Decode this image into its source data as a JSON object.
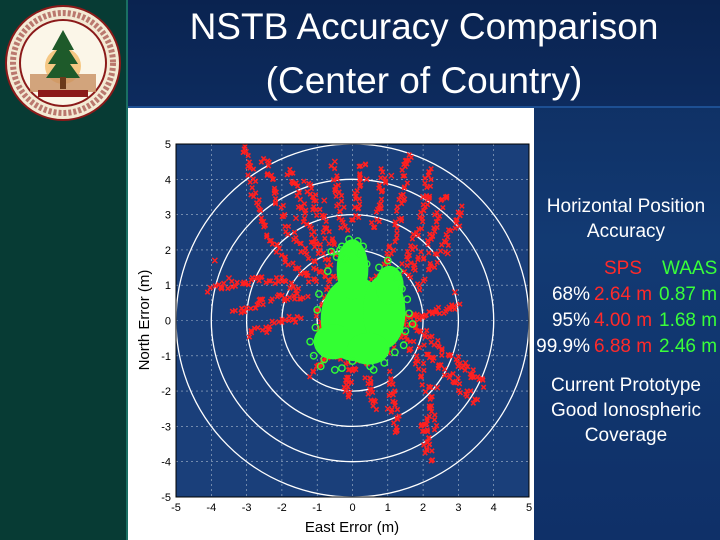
{
  "slide": {
    "title_line_1": "NSTB Accuracy Comparison",
    "title_line_2": "(Center of Country)"
  },
  "logo": {
    "name": "university-seal",
    "colors": {
      "ring": "#8b1a1a",
      "tree": "#1e5a2a",
      "sun": "#f0a030"
    }
  },
  "side_panel": {
    "heading_1": "Horizontal Position",
    "heading_2": "Accuracy",
    "col_sps": "SPS",
    "col_waas": "WAAS",
    "rows": [
      {
        "pct": "68%",
        "sps": "2.64 m",
        "waas": "0.87 m"
      },
      {
        "pct": "95%",
        "sps": "4.00 m",
        "waas": "1.68 m"
      },
      {
        "pct": "99.9%",
        "sps": "6.88 m",
        "waas": "2.46 m"
      }
    ],
    "note_1": "Current Prototype",
    "note_2": "Good Ionospheric",
    "note_3": "Coverage"
  },
  "chart_data": {
    "type": "scatter",
    "xlabel": "East Error (m)",
    "ylabel": "North Error (m)",
    "xlim": [
      -5,
      5
    ],
    "ylim": [
      -5,
      5
    ],
    "xticks": [
      -5,
      -4,
      -3,
      -2,
      -1,
      0,
      1,
      2,
      3,
      4,
      5
    ],
    "yticks": [
      -5,
      -4,
      -3,
      -2,
      -1,
      0,
      1,
      2,
      3,
      4,
      5
    ],
    "grid": true,
    "range_circles": [
      1,
      2,
      3,
      4,
      5
    ],
    "series": [
      {
        "name": "SPS",
        "color": "#ff2020",
        "marker": "x",
        "strands": [
          [
            [
              -3.1,
              4.9
            ],
            [
              -2.9,
              4.3
            ],
            [
              -2.8,
              3.6
            ],
            [
              -2.6,
              2.9
            ],
            [
              -2.3,
              2.3
            ],
            [
              -1.9,
              1.7
            ],
            [
              -1.4,
              1.3
            ],
            [
              -0.9,
              1.0
            ]
          ],
          [
            [
              -2.5,
              4.6
            ],
            [
              -2.3,
              4.0
            ],
            [
              -2.1,
              3.3
            ],
            [
              -1.8,
              2.6
            ],
            [
              -1.4,
              2.0
            ],
            [
              -1.0,
              1.5
            ],
            [
              -0.6,
              1.1
            ]
          ],
          [
            [
              -1.8,
              4.3
            ],
            [
              -1.6,
              3.7
            ],
            [
              -1.4,
              3.1
            ],
            [
              -1.2,
              2.5
            ],
            [
              -0.9,
              2.0
            ],
            [
              -0.6,
              1.5
            ]
          ],
          [
            [
              -1.3,
              3.9
            ],
            [
              -1.1,
              3.4
            ],
            [
              -0.9,
              2.9
            ],
            [
              -0.7,
              2.4
            ],
            [
              -0.5,
              1.9
            ]
          ],
          [
            [
              -0.5,
              4.3
            ],
            [
              -0.4,
              3.7
            ],
            [
              -0.3,
              3.1
            ],
            [
              -0.2,
              2.5
            ]
          ],
          [
            [
              0.3,
              4.5
            ],
            [
              0.2,
              3.9
            ],
            [
              0.1,
              3.3
            ],
            [
              0.05,
              2.7
            ]
          ],
          [
            [
              0.9,
              4.3
            ],
            [
              0.8,
              3.7
            ],
            [
              0.7,
              3.1
            ],
            [
              0.6,
              2.5
            ]
          ],
          [
            [
              1.6,
              4.8
            ],
            [
              1.5,
              4.2
            ],
            [
              1.4,
              3.5
            ],
            [
              1.3,
              2.8
            ],
            [
              1.1,
              2.1
            ],
            [
              0.9,
              1.5
            ]
          ],
          [
            [
              2.2,
              4.3
            ],
            [
              2.1,
              3.7
            ],
            [
              2.0,
              3.1
            ],
            [
              1.8,
              2.4
            ],
            [
              1.6,
              1.8
            ],
            [
              1.3,
              1.2
            ]
          ],
          [
            [
              2.6,
              3.6
            ],
            [
              2.4,
              3.0
            ],
            [
              2.2,
              2.4
            ],
            [
              2.0,
              1.8
            ],
            [
              1.6,
              1.2
            ]
          ],
          [
            [
              3.1,
              3.2
            ],
            [
              2.9,
              2.6
            ],
            [
              2.6,
              2.1
            ],
            [
              2.2,
              1.5
            ],
            [
              1.8,
              0.9
            ]
          ],
          [
            [
              -4.0,
              0.9
            ],
            [
              -3.5,
              1.0
            ],
            [
              -3.0,
              1.1
            ],
            [
              -2.5,
              1.2
            ],
            [
              -2.0,
              1.1
            ],
            [
              -1.5,
              0.9
            ]
          ],
          [
            [
              -3.3,
              0.2
            ],
            [
              -2.8,
              0.4
            ],
            [
              -2.3,
              0.6
            ],
            [
              -1.8,
              0.7
            ],
            [
              -1.3,
              0.6
            ]
          ],
          [
            [
              -2.9,
              -0.4
            ],
            [
              -2.4,
              -0.2
            ],
            [
              -1.9,
              0.0
            ],
            [
              -1.4,
              0.1
            ]
          ],
          [
            [
              3.0,
              0.4
            ],
            [
              2.6,
              0.3
            ],
            [
              2.2,
              0.2
            ],
            [
              1.8,
              0.1
            ],
            [
              1.4,
              0.1
            ]
          ],
          [
            [
              3.8,
              -1.8
            ],
            [
              3.4,
              -1.5
            ],
            [
              3.0,
              -1.2
            ],
            [
              2.6,
              -0.9
            ],
            [
              2.2,
              -0.5
            ],
            [
              1.8,
              -0.2
            ],
            [
              1.4,
              0.0
            ]
          ],
          [
            [
              3.5,
              -2.3
            ],
            [
              3.1,
              -1.9
            ],
            [
              2.7,
              -1.5
            ],
            [
              2.3,
              -1.1
            ],
            [
              1.9,
              -0.7
            ]
          ],
          [
            [
              2.3,
              -3.0
            ],
            [
              2.2,
              -2.4
            ],
            [
              2.1,
              -1.8
            ],
            [
              1.9,
              -1.2
            ],
            [
              1.6,
              -0.6
            ],
            [
              1.3,
              -0.1
            ]
          ],
          [
            [
              2.2,
              -3.9
            ],
            [
              2.1,
              -3.5
            ],
            [
              2.0,
              -3.1
            ],
            [
              2.1,
              -2.7
            ]
          ],
          [
            [
              1.3,
              -3.2
            ],
            [
              1.2,
              -2.6
            ],
            [
              1.1,
              -2.0
            ],
            [
              1.0,
              -1.4
            ]
          ],
          [
            [
              0.6,
              -2.5
            ],
            [
              0.5,
              -2.0
            ],
            [
              0.4,
              -1.5
            ]
          ],
          [
            [
              -0.2,
              -2.1
            ],
            [
              -0.1,
              -1.7
            ],
            [
              0.0,
              -1.3
            ]
          ],
          [
            [
              -1.2,
              -1.5
            ],
            [
              -0.9,
              -1.2
            ],
            [
              -0.6,
              -0.9
            ]
          ],
          [
            [
              0.0,
              1.6
            ],
            [
              -0.8,
              0.9
            ],
            [
              -1.0,
              0.0
            ],
            [
              -0.7,
              -0.9
            ],
            [
              0.0,
              -1.3
            ],
            [
              0.9,
              -1.0
            ],
            [
              1.4,
              -0.1
            ],
            [
              1.0,
              0.9
            ],
            [
              0.0,
              1.6
            ]
          ]
        ],
        "points": [
          [
            -3.9,
            1.7
          ],
          [
            -3.5,
            1.2
          ],
          [
            0.4,
            4.0
          ],
          [
            1.1,
            4.1
          ],
          [
            2.0,
            3.5
          ],
          [
            2.7,
            1.9
          ],
          [
            3.2,
            -1.2
          ],
          [
            -0.2,
            -2.0
          ],
          [
            2.4,
            -1.9
          ],
          [
            -0.8,
            3.4
          ],
          [
            -0.5,
            4.5
          ],
          [
            -1.1,
            3.5
          ],
          [
            -2.6,
            0.6
          ],
          [
            2.9,
            0.8
          ],
          [
            1.0,
            -2.5
          ],
          [
            -1.6,
            2.9
          ]
        ]
      },
      {
        "name": "WAAS",
        "color": "#33ff33",
        "marker": "o",
        "blobs": [
          {
            "cx": 0.05,
            "cy": 0.05,
            "rx": 0.95,
            "ry": 1.2
          },
          {
            "cx": 0.0,
            "cy": 1.45,
            "rx": 0.45,
            "ry": 0.85
          },
          {
            "cx": 0.9,
            "cy": 0.25,
            "rx": 0.6,
            "ry": 1.05
          },
          {
            "cx": 1.05,
            "cy": 1.0,
            "rx": 0.4,
            "ry": 0.55
          },
          {
            "cx": -0.55,
            "cy": -0.6,
            "rx": 0.55,
            "ry": 0.5
          },
          {
            "cx": 0.45,
            "cy": -0.8,
            "rx": 0.6,
            "ry": 0.45
          }
        ],
        "points": [
          [
            -0.3,
            2.1
          ],
          [
            0.3,
            2.1
          ],
          [
            -0.1,
            2.3
          ],
          [
            0.2,
            1.9
          ],
          [
            -0.45,
            1.8
          ],
          [
            -1.1,
            -1.0
          ],
          [
            -1.2,
            -0.6
          ],
          [
            -0.9,
            -1.3
          ],
          [
            -0.5,
            -1.4
          ],
          [
            1.6,
            0.2
          ],
          [
            1.5,
            -0.3
          ],
          [
            1.4,
            0.9
          ],
          [
            1.3,
            1.4
          ],
          [
            1.0,
            1.7
          ],
          [
            0.9,
            -1.2
          ],
          [
            0.5,
            -1.3
          ],
          [
            0.0,
            -1.15
          ],
          [
            -1.0,
            0.3
          ],
          [
            -0.95,
            0.75
          ],
          [
            1.7,
            -0.1
          ],
          [
            1.55,
            0.6
          ],
          [
            -0.7,
            1.4
          ],
          [
            0.4,
            1.6
          ],
          [
            -0.2,
            1.75
          ],
          [
            0.6,
            -1.4
          ],
          [
            -0.8,
            -1.1
          ],
          [
            1.2,
            -0.9
          ],
          [
            1.45,
            -0.7
          ],
          [
            -0.6,
            1.95
          ],
          [
            0.15,
            2.25
          ],
          [
            -1.05,
            -0.2
          ],
          [
            -0.3,
            -1.35
          ],
          [
            1.25,
            1.2
          ],
          [
            0.75,
            1.5
          ],
          [
            -0.35,
            2.0
          ]
        ]
      }
    ]
  }
}
